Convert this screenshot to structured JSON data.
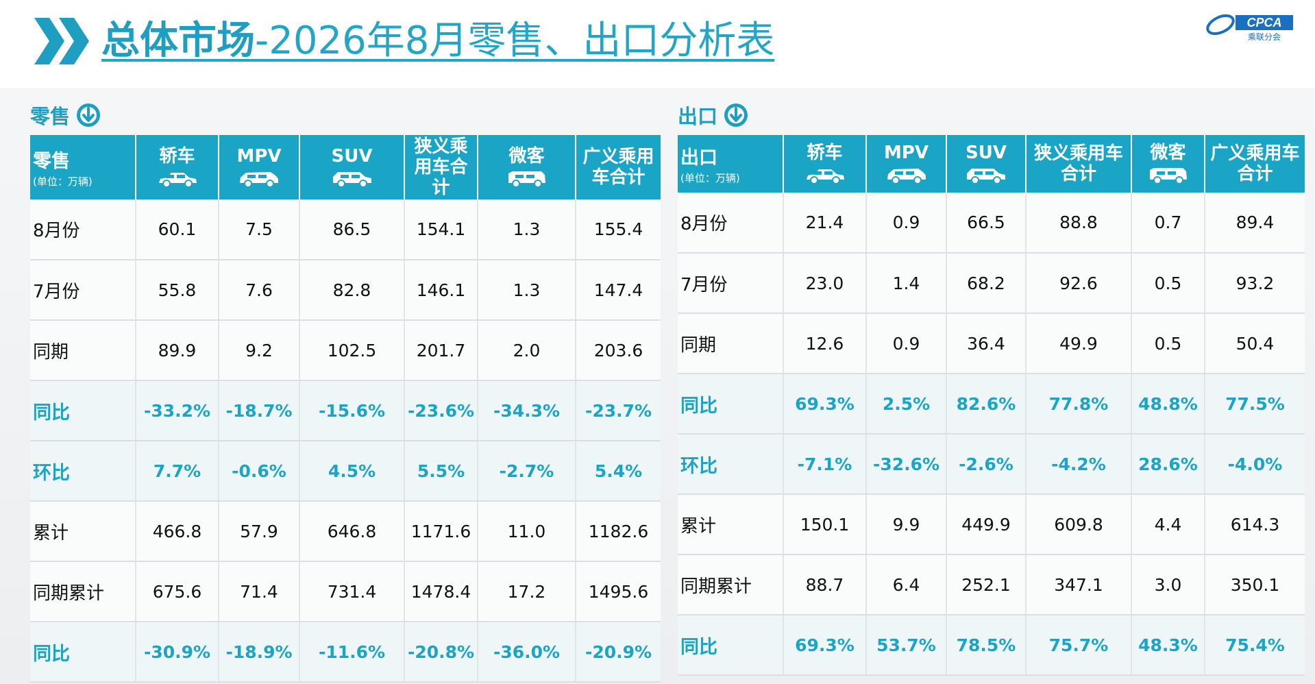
{
  "header": {
    "title_main": "总体市场",
    "title_rest": "-2026年8月零售、出口分析表",
    "logo_text": "CPCA",
    "logo_sub": "乘联分会"
  },
  "colors": {
    "accent": "#1aa5c6",
    "accent_text": "#1e9ec0"
  },
  "retail": {
    "section_label": "零售",
    "section_icon": "arrow-down-circle-icon",
    "corner_label": "零售",
    "corner_unit": "(单位：万辆)",
    "columns": [
      "轿车",
      "MPV",
      "SUV",
      "狭义乘用车合计",
      "微客",
      "广义乘用车合计"
    ],
    "column_icons": [
      "sedan-icon",
      "mpv-icon",
      "suv-icon",
      "",
      "minivan-icon",
      ""
    ],
    "rows": [
      {
        "label": "8月份",
        "values": [
          "60.1",
          "7.5",
          "86.5",
          "154.1",
          "1.3",
          "155.4"
        ],
        "highlight": false
      },
      {
        "label": "7月份",
        "values": [
          "55.8",
          "7.6",
          "82.8",
          "146.1",
          "1.3",
          "147.4"
        ],
        "highlight": false
      },
      {
        "label": "同期",
        "values": [
          "89.9",
          "9.2",
          "102.5",
          "201.7",
          "2.0",
          "203.6"
        ],
        "highlight": false
      },
      {
        "label": "同比",
        "values": [
          "-33.2%",
          "-18.7%",
          "-15.6%",
          "-23.6%",
          "-34.3%",
          "-23.7%"
        ],
        "highlight": true
      },
      {
        "label": "环比",
        "values": [
          "7.7%",
          "-0.6%",
          "4.5%",
          "5.5%",
          "-2.7%",
          "5.4%"
        ],
        "highlight": true
      },
      {
        "label": "累计",
        "values": [
          "466.8",
          "57.9",
          "646.8",
          "1171.6",
          "11.0",
          "1182.6"
        ],
        "highlight": false
      },
      {
        "label": "同期累计",
        "values": [
          "675.6",
          "71.4",
          "731.4",
          "1478.4",
          "17.2",
          "1495.6"
        ],
        "highlight": false
      },
      {
        "label": "同比",
        "values": [
          "-30.9%",
          "-18.9%",
          "-11.6%",
          "-20.8%",
          "-36.0%",
          "-20.9%"
        ],
        "highlight": true
      }
    ]
  },
  "export": {
    "section_label": "出口",
    "section_icon": "arrow-down-circle-icon",
    "corner_label": "出口",
    "corner_unit": "(单位：万辆)",
    "columns": [
      "轿车",
      "MPV",
      "SUV",
      "狭义乘用车合计",
      "微客",
      "广义乘用车合计"
    ],
    "column_icons": [
      "sedan-icon",
      "mpv-icon",
      "suv-icon",
      "",
      "minivan-icon",
      ""
    ],
    "rows": [
      {
        "label": "8月份",
        "values": [
          "21.4",
          "0.9",
          "66.5",
          "88.8",
          "0.7",
          "89.4"
        ],
        "highlight": false
      },
      {
        "label": "7月份",
        "values": [
          "23.0",
          "1.4",
          "68.2",
          "92.6",
          "0.5",
          "93.2"
        ],
        "highlight": false
      },
      {
        "label": "同期",
        "values": [
          "12.6",
          "0.9",
          "36.4",
          "49.9",
          "0.5",
          "50.4"
        ],
        "highlight": false
      },
      {
        "label": "同比",
        "values": [
          "69.3%",
          "2.5%",
          "82.6%",
          "77.8%",
          "48.8%",
          "77.5%"
        ],
        "highlight": true
      },
      {
        "label": "环比",
        "values": [
          "-7.1%",
          "-32.6%",
          "-2.6%",
          "-4.2%",
          "28.6%",
          "-4.0%"
        ],
        "highlight": true
      },
      {
        "label": "累计",
        "values": [
          "150.1",
          "9.9",
          "449.9",
          "609.8",
          "4.4",
          "614.3"
        ],
        "highlight": false
      },
      {
        "label": "同期累计",
        "values": [
          "88.7",
          "6.4",
          "252.1",
          "347.1",
          "3.0",
          "350.1"
        ],
        "highlight": false
      },
      {
        "label": "同比",
        "values": [
          "69.3%",
          "53.7%",
          "78.5%",
          "75.7%",
          "48.3%",
          "75.4%"
        ],
        "highlight": true
      }
    ]
  }
}
